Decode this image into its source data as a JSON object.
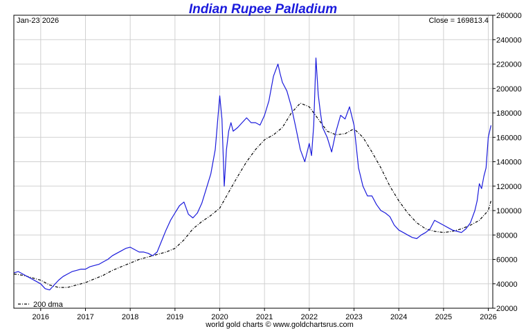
{
  "chart_data": {
    "type": "line",
    "title": "Indian Rupee Palladium",
    "date_label": "Jan-23  2026",
    "close_label": "Close = 169813.4",
    "credit": "world gold charts © www.goldchartsrus.com",
    "ylim": [
      20000,
      260000
    ],
    "y_ticks": [
      20000,
      40000,
      60000,
      80000,
      100000,
      120000,
      140000,
      160000,
      180000,
      200000,
      220000,
      240000,
      260000
    ],
    "xlim": [
      2015.4,
      2026.1
    ],
    "x_ticks": [
      "2016",
      "2017",
      "2018",
      "2019",
      "2020",
      "2021",
      "2022",
      "2023",
      "2024",
      "2025",
      "2026"
    ],
    "grid": true,
    "legend": "bottom-left",
    "colors": {
      "price": "#1a1adc",
      "dma": "#000000",
      "grid": "#d0d0d0",
      "title": "#1a1adc"
    },
    "series": [
      {
        "label": "price",
        "x": [
          2015.4,
          2015.5,
          2015.6,
          2015.7,
          2015.8,
          2015.9,
          2016.0,
          2016.1,
          2016.2,
          2016.3,
          2016.4,
          2016.5,
          2016.6,
          2016.7,
          2016.8,
          2016.9,
          2017.0,
          2017.1,
          2017.2,
          2017.3,
          2017.4,
          2017.5,
          2017.6,
          2017.7,
          2017.8,
          2017.9,
          2018.0,
          2018.1,
          2018.2,
          2018.3,
          2018.4,
          2018.5,
          2018.6,
          2018.7,
          2018.8,
          2018.9,
          2019.0,
          2019.1,
          2019.2,
          2019.3,
          2019.4,
          2019.5,
          2019.6,
          2019.7,
          2019.8,
          2019.9,
          2020.0,
          2020.05,
          2020.1,
          2020.15,
          2020.2,
          2020.25,
          2020.3,
          2020.4,
          2020.5,
          2020.6,
          2020.7,
          2020.8,
          2020.9,
          2021.0,
          2021.1,
          2021.2,
          2021.3,
          2021.35,
          2021.4,
          2021.5,
          2021.6,
          2021.7,
          2021.8,
          2021.9,
          2022.0,
          2022.05,
          2022.1,
          2022.15,
          2022.2,
          2022.25,
          2022.3,
          2022.4,
          2022.5,
          2022.6,
          2022.7,
          2022.8,
          2022.9,
          2023.0,
          2023.1,
          2023.2,
          2023.3,
          2023.4,
          2023.5,
          2023.6,
          2023.7,
          2023.8,
          2023.9,
          2024.0,
          2024.1,
          2024.2,
          2024.3,
          2024.4,
          2024.5,
          2024.6,
          2024.7,
          2024.8,
          2024.9,
          2025.0,
          2025.1,
          2025.2,
          2025.3,
          2025.4,
          2025.5,
          2025.6,
          2025.7,
          2025.75,
          2025.8,
          2025.85,
          2025.9,
          2025.95,
          2026.0,
          2026.06
        ],
        "y": [
          49000,
          50000,
          48000,
          46000,
          44000,
          42000,
          40000,
          36000,
          35000,
          39000,
          43000,
          46000,
          48000,
          50000,
          51000,
          52000,
          52000,
          54000,
          55000,
          56000,
          58000,
          60000,
          63000,
          65000,
          67000,
          69000,
          70000,
          68000,
          66000,
          66000,
          65000,
          63000,
          66000,
          75000,
          84000,
          92000,
          98000,
          104000,
          107000,
          97000,
          94000,
          98000,
          106000,
          118000,
          130000,
          150000,
          194000,
          175000,
          120000,
          150000,
          165000,
          172000,
          165000,
          168000,
          172000,
          176000,
          172000,
          172000,
          170000,
          178000,
          190000,
          210000,
          220000,
          212000,
          205000,
          198000,
          185000,
          168000,
          150000,
          140000,
          155000,
          145000,
          170000,
          225000,
          195000,
          180000,
          168000,
          160000,
          148000,
          165000,
          178000,
          175000,
          185000,
          170000,
          135000,
          120000,
          112000,
          112000,
          105000,
          100000,
          98000,
          95000,
          88000,
          84000,
          82000,
          80000,
          78000,
          77000,
          80000,
          82000,
          85000,
          92000,
          90000,
          88000,
          86000,
          84000,
          83000,
          82000,
          85000,
          90000,
          100000,
          108000,
          122000,
          118000,
          128000,
          135000,
          160000,
          169813
        ]
      },
      {
        "label": "200 dma",
        "x": [
          2015.4,
          2015.6,
          2015.8,
          2016.0,
          2016.2,
          2016.4,
          2016.6,
          2016.8,
          2017.0,
          2017.2,
          2017.4,
          2017.6,
          2017.8,
          2018.0,
          2018.2,
          2018.4,
          2018.6,
          2018.8,
          2019.0,
          2019.2,
          2019.4,
          2019.6,
          2019.8,
          2020.0,
          2020.2,
          2020.4,
          2020.6,
          2020.8,
          2021.0,
          2021.2,
          2021.4,
          2021.6,
          2021.8,
          2022.0,
          2022.2,
          2022.4,
          2022.6,
          2022.8,
          2023.0,
          2023.2,
          2023.4,
          2023.6,
          2023.8,
          2024.0,
          2024.2,
          2024.4,
          2024.6,
          2024.8,
          2025.0,
          2025.2,
          2025.4,
          2025.6,
          2025.8,
          2026.0,
          2026.06
        ],
        "y": [
          48000,
          47000,
          45000,
          43000,
          39000,
          37000,
          37000,
          39000,
          41000,
          44000,
          47000,
          51000,
          54000,
          57000,
          60000,
          62000,
          64000,
          66000,
          69000,
          76000,
          85000,
          91000,
          96000,
          102000,
          115000,
          128000,
          140000,
          150000,
          158000,
          162000,
          168000,
          180000,
          188000,
          185000,
          175000,
          165000,
          162000,
          163000,
          167000,
          160000,
          148000,
          135000,
          120000,
          108000,
          98000,
          90000,
          85000,
          83000,
          82000,
          83000,
          85000,
          88000,
          92000,
          100000,
          108000
        ]
      }
    ]
  }
}
